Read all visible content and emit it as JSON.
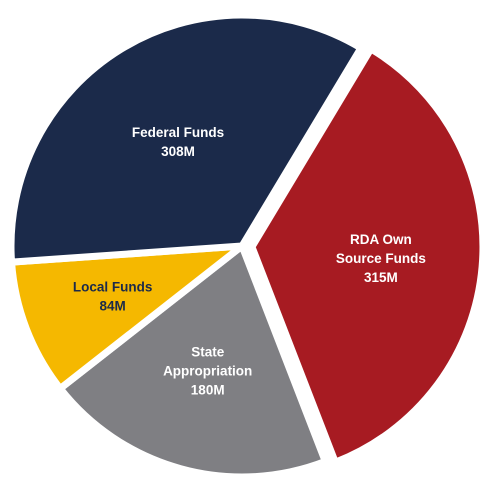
{
  "chart_data": {
    "type": "pie",
    "title": "",
    "slices": [
      {
        "label_lines": [
          "RDA Own",
          "Source Funds"
        ],
        "value_label": "315M",
        "value": 315,
        "color": "#a71b22",
        "text_color": "#ffffff"
      },
      {
        "label_lines": [
          "State",
          "Appropriation"
        ],
        "value_label": "180M",
        "value": 180,
        "color": "#7f7f83",
        "text_color": "#ffffff"
      },
      {
        "label_lines": [
          "Local Funds"
        ],
        "value_label": "84M",
        "value": 84,
        "color": "#f5b800",
        "text_color": "#1b2a4a"
      },
      {
        "label_lines": [
          "Federal Funds"
        ],
        "value_label": "308M",
        "value": 308,
        "color": "#1b2a4a",
        "text_color": "#ffffff"
      }
    ],
    "start_angle_deg": 31,
    "direction": "clockwise",
    "exploded_slice": "RDA Own Source Funds"
  }
}
